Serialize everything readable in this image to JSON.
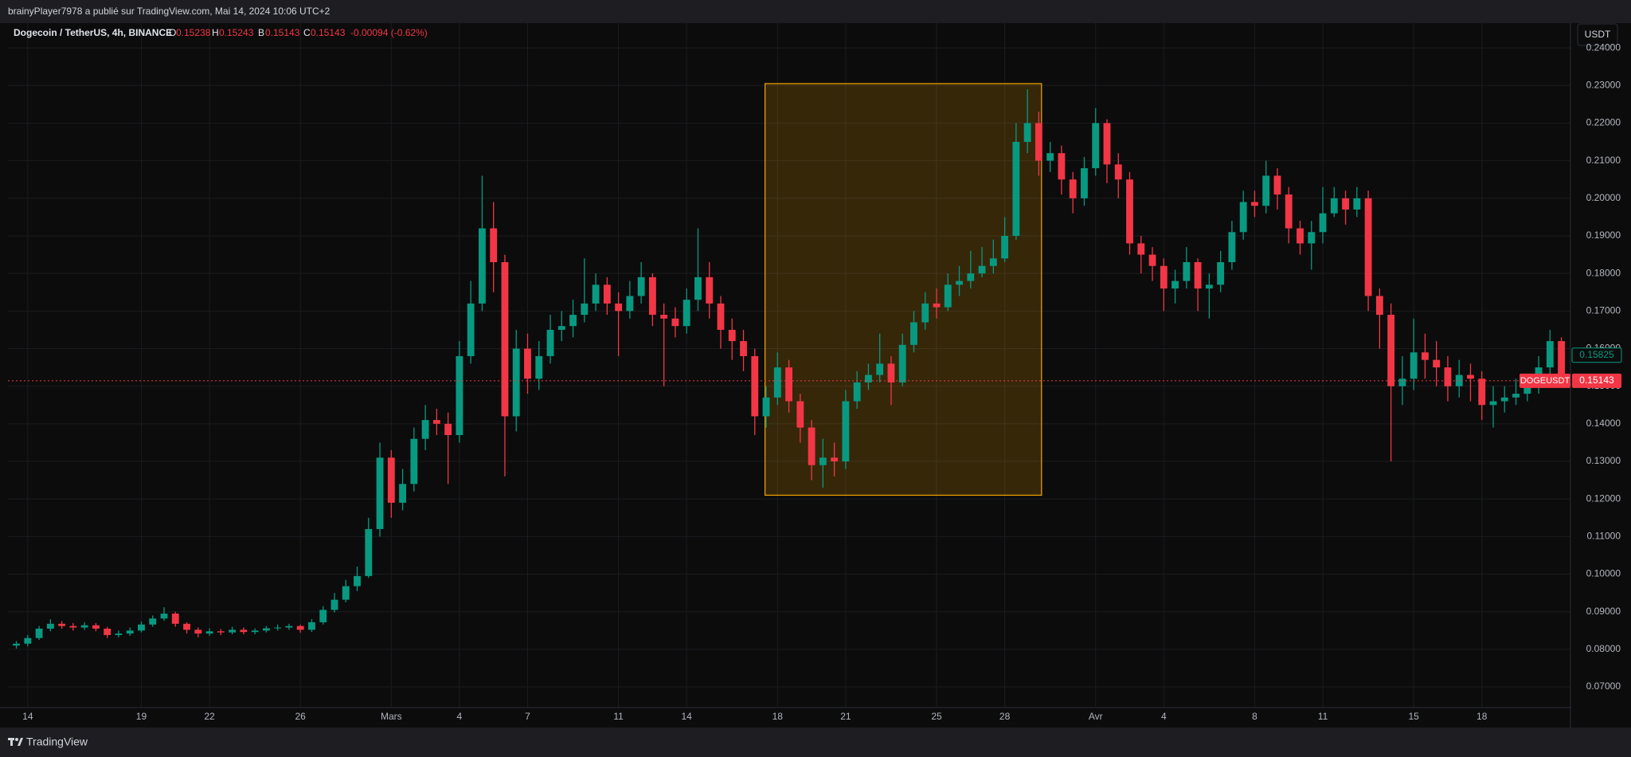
{
  "header": {
    "published": "brainyPlayer7978 a publié sur TradingView.com, Mai 14, 2024 10:06 UTC+2"
  },
  "legend": {
    "symbol": "Dogecoin / TetherUS, 4h, BINANCE",
    "ohlc": [
      {
        "key": "O",
        "value": "0.15238"
      },
      {
        "key": "H",
        "value": "0.15243"
      },
      {
        "key": "B",
        "value": "0.15143"
      },
      {
        "key": "C",
        "value": "0.15143"
      }
    ],
    "change": "-0.00094 (-0.62%)"
  },
  "currency_button": "USDT",
  "footer": {
    "brand": "TradingView"
  },
  "chart_data": {
    "type": "candlestick",
    "up_color": "#089981",
    "down_color": "#f23645",
    "grid": true,
    "xlim": [
      -0.87,
      67.9
    ],
    "ylim": [
      0.0645,
      0.2466
    ],
    "xticks": [
      {
        "value": 0,
        "label": "14"
      },
      {
        "value": 5,
        "label": "19"
      },
      {
        "value": 8,
        "label": "22"
      },
      {
        "value": 12,
        "label": "26"
      },
      {
        "value": 16,
        "label": "Mars"
      },
      {
        "value": 19,
        "label": "4"
      },
      {
        "value": 22,
        "label": "7"
      },
      {
        "value": 26,
        "label": "11"
      },
      {
        "value": 29,
        "label": "14"
      },
      {
        "value": 33,
        "label": "18"
      },
      {
        "value": 36,
        "label": "21"
      },
      {
        "value": 40,
        "label": "25"
      },
      {
        "value": 43,
        "label": "28"
      },
      {
        "value": 47,
        "label": "Avr"
      },
      {
        "value": 50,
        "label": "4"
      },
      {
        "value": 54,
        "label": "8"
      },
      {
        "value": 57,
        "label": "11"
      },
      {
        "value": 61,
        "label": "15"
      },
      {
        "value": 64,
        "label": "18"
      }
    ],
    "yticks": [
      {
        "value": 0.07,
        "label": "0.07000"
      },
      {
        "value": 0.08,
        "label": "0.08000"
      },
      {
        "value": 0.09,
        "label": "0.09000"
      },
      {
        "value": 0.1,
        "label": "0.10000"
      },
      {
        "value": 0.11,
        "label": "0.11000"
      },
      {
        "value": 0.12,
        "label": "0.12000"
      },
      {
        "value": 0.13,
        "label": "0.13000"
      },
      {
        "value": 0.14,
        "label": "0.14000"
      },
      {
        "value": 0.15,
        "label": "0.15000"
      },
      {
        "value": 0.16,
        "label": "0.16000"
      },
      {
        "value": 0.17,
        "label": "0.17000"
      },
      {
        "value": 0.18,
        "label": "0.18000"
      },
      {
        "value": 0.19,
        "label": "0.19000"
      },
      {
        "value": 0.2,
        "label": "0.20000"
      },
      {
        "value": 0.21,
        "label": "0.21000"
      },
      {
        "value": 0.22,
        "label": "0.22000"
      },
      {
        "value": 0.23,
        "label": "0.23000"
      },
      {
        "value": 0.24,
        "label": "0.24000"
      }
    ],
    "x": [
      -0.5,
      0,
      0.5,
      1,
      1.5,
      2,
      2.5,
      3,
      3.5,
      4,
      4.5,
      5,
      5.5,
      6,
      6.5,
      7,
      7.5,
      8,
      8.5,
      9,
      9.5,
      10,
      10.5,
      11,
      11.5,
      12,
      12.5,
      13,
      13.5,
      14,
      14.5,
      15,
      15.5,
      16,
      16.5,
      17,
      17.5,
      18,
      18.5,
      19,
      19.5,
      20,
      20.5,
      21,
      21.5,
      22,
      22.5,
      23,
      23.5,
      24,
      24.5,
      25,
      25.5,
      26,
      26.5,
      27,
      27.5,
      28,
      28.5,
      29,
      29.5,
      30,
      30.5,
      31,
      31.5,
      32,
      32.5,
      33,
      33.5,
      34,
      34.5,
      35,
      35.5,
      36,
      36.5,
      37,
      37.5,
      38,
      38.5,
      39,
      39.5,
      40,
      40.5,
      41,
      41.5,
      42,
      42.5,
      43,
      43.5,
      44,
      44.5,
      45,
      45.5,
      46,
      46.5,
      47,
      47.5,
      48,
      48.5,
      49,
      49.5,
      50,
      50.5,
      51,
      51.5,
      52,
      52.5,
      53,
      53.5,
      54,
      54.5,
      55,
      55.5,
      56,
      56.5,
      57,
      57.5,
      58,
      58.5,
      59,
      59.5,
      60,
      60.5,
      61,
      61.5,
      62,
      62.5,
      63,
      63.5,
      64,
      64.5,
      65,
      65.5,
      66,
      66.5,
      67,
      67.5
    ],
    "open": [
      0.081,
      0.0815,
      0.083,
      0.0855,
      0.0868,
      0.0862,
      0.0858,
      0.0864,
      0.0855,
      0.0838,
      0.0842,
      0.085,
      0.0866,
      0.0882,
      0.0895,
      0.0868,
      0.0852,
      0.0842,
      0.0848,
      0.0845,
      0.0852,
      0.0846,
      0.085,
      0.0856,
      0.0858,
      0.0862,
      0.0852,
      0.0872,
      0.0905,
      0.0932,
      0.0968,
      0.0995,
      0.112,
      0.131,
      0.119,
      0.124,
      0.136,
      0.141,
      0.14,
      0.137,
      0.158,
      0.172,
      0.192,
      0.183,
      0.142,
      0.16,
      0.152,
      0.158,
      0.165,
      0.166,
      0.169,
      0.172,
      0.177,
      0.172,
      0.17,
      0.174,
      0.179,
      0.169,
      0.168,
      0.166,
      0.173,
      0.179,
      0.172,
      0.165,
      0.162,
      0.158,
      0.142,
      0.147,
      0.155,
      0.146,
      0.139,
      0.129,
      0.131,
      0.13,
      0.146,
      0.151,
      0.153,
      0.156,
      0.151,
      0.161,
      0.167,
      0.172,
      0.171,
      0.177,
      0.178,
      0.18,
      0.182,
      0.184,
      0.19,
      0.215,
      0.22,
      0.21,
      0.212,
      0.205,
      0.2,
      0.208,
      0.22,
      0.209,
      0.205,
      0.188,
      0.185,
      0.182,
      0.176,
      0.178,
      0.183,
      0.176,
      0.177,
      0.183,
      0.191,
      0.199,
      0.198,
      0.206,
      0.201,
      0.192,
      0.188,
      0.191,
      0.196,
      0.2,
      0.197,
      0.2,
      0.174,
      0.169,
      0.15,
      0.152,
      0.159,
      0.157,
      0.155,
      0.15,
      0.153,
      0.152,
      0.145,
      0.146,
      0.147,
      0.148,
      0.15,
      0.155,
      0.162
    ],
    "high": [
      0.0822,
      0.0838,
      0.0862,
      0.088,
      0.0875,
      0.087,
      0.0872,
      0.087,
      0.086,
      0.085,
      0.0858,
      0.0874,
      0.089,
      0.0912,
      0.09,
      0.0872,
      0.0858,
      0.0856,
      0.0854,
      0.086,
      0.0858,
      0.0856,
      0.0862,
      0.0866,
      0.0868,
      0.0866,
      0.088,
      0.0915,
      0.095,
      0.0985,
      0.102,
      0.115,
      0.135,
      0.133,
      0.128,
      0.139,
      0.145,
      0.144,
      0.143,
      0.162,
      0.178,
      0.206,
      0.199,
      0.185,
      0.165,
      0.164,
      0.162,
      0.169,
      0.17,
      0.173,
      0.184,
      0.18,
      0.179,
      0.175,
      0.178,
      0.183,
      0.18,
      0.172,
      0.171,
      0.176,
      0.192,
      0.183,
      0.174,
      0.168,
      0.165,
      0.16,
      0.15,
      0.159,
      0.157,
      0.148,
      0.141,
      0.136,
      0.135,
      0.149,
      0.154,
      0.156,
      0.164,
      0.158,
      0.164,
      0.17,
      0.175,
      0.176,
      0.18,
      0.182,
      0.186,
      0.187,
      0.189,
      0.195,
      0.22,
      0.229,
      0.223,
      0.215,
      0.214,
      0.207,
      0.211,
      0.224,
      0.221,
      0.212,
      0.207,
      0.19,
      0.187,
      0.184,
      0.181,
      0.187,
      0.184,
      0.18,
      0.186,
      0.194,
      0.202,
      0.202,
      0.21,
      0.208,
      0.203,
      0.194,
      0.194,
      0.203,
      0.203,
      0.202,
      0.203,
      0.202,
      0.176,
      0.172,
      0.158,
      0.168,
      0.164,
      0.162,
      0.158,
      0.157,
      0.156,
      0.154,
      0.15,
      0.15,
      0.152,
      0.153,
      0.158,
      0.165,
      0.163
    ],
    "low": [
      0.0802,
      0.0808,
      0.0825,
      0.0848,
      0.0855,
      0.085,
      0.0852,
      0.0848,
      0.083,
      0.0832,
      0.0836,
      0.0845,
      0.086,
      0.0876,
      0.086,
      0.0842,
      0.0832,
      0.0836,
      0.0838,
      0.084,
      0.084,
      0.084,
      0.0845,
      0.085,
      0.0852,
      0.0844,
      0.0846,
      0.0866,
      0.0898,
      0.0925,
      0.0955,
      0.099,
      0.11,
      0.115,
      0.117,
      0.122,
      0.133,
      0.137,
      0.124,
      0.135,
      0.156,
      0.17,
      0.175,
      0.126,
      0.138,
      0.148,
      0.149,
      0.156,
      0.162,
      0.163,
      0.167,
      0.17,
      0.169,
      0.158,
      0.168,
      0.172,
      0.166,
      0.15,
      0.163,
      0.164,
      0.17,
      0.168,
      0.16,
      0.157,
      0.154,
      0.137,
      0.139,
      0.145,
      0.143,
      0.135,
      0.125,
      0.123,
      0.126,
      0.128,
      0.144,
      0.149,
      0.151,
      0.145,
      0.15,
      0.159,
      0.165,
      0.168,
      0.17,
      0.174,
      0.176,
      0.179,
      0.18,
      0.183,
      0.189,
      0.212,
      0.206,
      0.207,
      0.201,
      0.196,
      0.198,
      0.206,
      0.204,
      0.2,
      0.185,
      0.18,
      0.178,
      0.17,
      0.172,
      0.176,
      0.17,
      0.168,
      0.175,
      0.181,
      0.189,
      0.195,
      0.196,
      0.197,
      0.188,
      0.185,
      0.181,
      0.188,
      0.195,
      0.193,
      0.195,
      0.17,
      0.16,
      0.13,
      0.145,
      0.149,
      0.152,
      0.15,
      0.146,
      0.147,
      0.146,
      0.141,
      0.139,
      0.143,
      0.145,
      0.146,
      0.148,
      0.153,
      0.15
    ],
    "close": [
      0.0815,
      0.083,
      0.0855,
      0.0868,
      0.0862,
      0.0858,
      0.0864,
      0.0855,
      0.0838,
      0.0842,
      0.085,
      0.0866,
      0.0882,
      0.0895,
      0.0868,
      0.0852,
      0.0842,
      0.0848,
      0.0845,
      0.0852,
      0.0846,
      0.085,
      0.0856,
      0.0858,
      0.0862,
      0.0852,
      0.0872,
      0.0905,
      0.0932,
      0.0968,
      0.0995,
      0.112,
      0.131,
      0.119,
      0.124,
      0.136,
      0.141,
      0.14,
      0.137,
      0.158,
      0.172,
      0.192,
      0.183,
      0.142,
      0.16,
      0.152,
      0.158,
      0.165,
      0.166,
      0.169,
      0.172,
      0.177,
      0.172,
      0.17,
      0.174,
      0.179,
      0.169,
      0.168,
      0.166,
      0.173,
      0.179,
      0.172,
      0.165,
      0.162,
      0.158,
      0.142,
      0.147,
      0.155,
      0.146,
      0.139,
      0.129,
      0.131,
      0.13,
      0.146,
      0.151,
      0.153,
      0.156,
      0.151,
      0.161,
      0.167,
      0.172,
      0.171,
      0.177,
      0.178,
      0.18,
      0.182,
      0.184,
      0.19,
      0.215,
      0.22,
      0.21,
      0.212,
      0.205,
      0.2,
      0.208,
      0.22,
      0.209,
      0.205,
      0.188,
      0.185,
      0.182,
      0.176,
      0.178,
      0.183,
      0.176,
      0.177,
      0.183,
      0.191,
      0.199,
      0.198,
      0.206,
      0.201,
      0.192,
      0.188,
      0.191,
      0.196,
      0.2,
      0.197,
      0.2,
      0.174,
      0.169,
      0.15,
      0.152,
      0.159,
      0.157,
      0.155,
      0.15,
      0.153,
      0.152,
      0.145,
      0.146,
      0.147,
      0.148,
      0.15,
      0.155,
      0.162,
      0.1514
    ],
    "rectangle": {
      "xlim": [
        32.45,
        44.62
      ],
      "ylim": [
        0.121,
        0.2305
      ],
      "color": "#f7a600"
    },
    "price_lines": [
      {
        "value": 0.15825,
        "color": "#089981"
      },
      {
        "name": "DOGEUSDT",
        "value": 0.15143,
        "color": "#f23645"
      }
    ]
  }
}
